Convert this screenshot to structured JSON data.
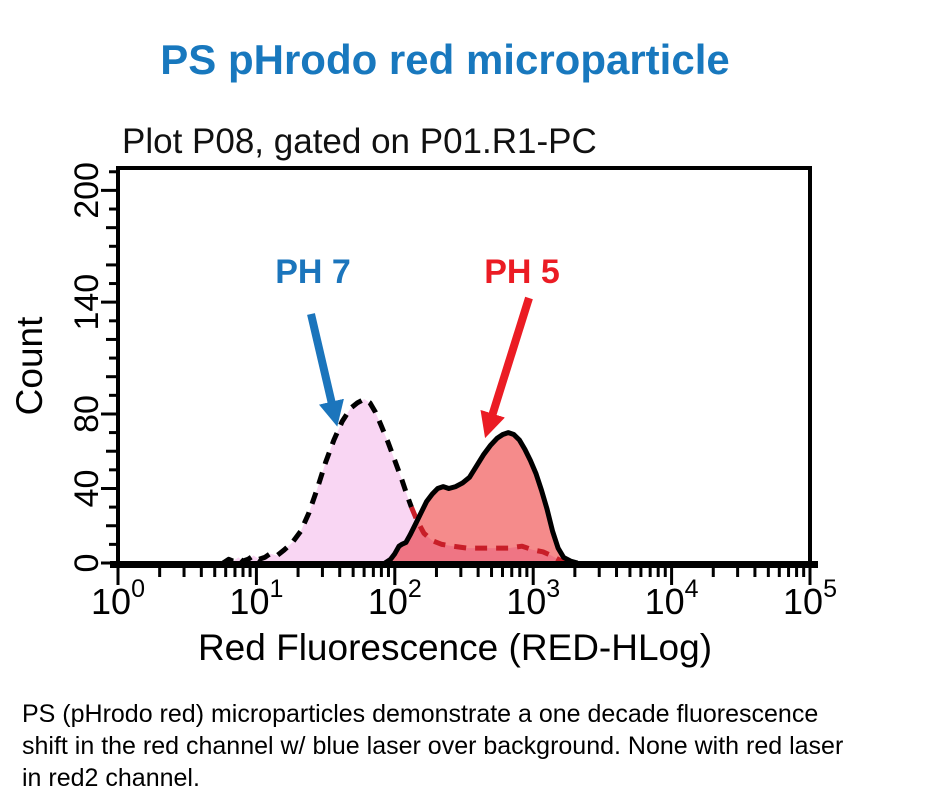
{
  "title": {
    "text": "PS pHrodo red microparticle",
    "color": "#1878BE"
  },
  "plot": {
    "title": "Plot P08, gated on P01.R1-PC",
    "x_axis_label": "Red Fluorescence (RED-HLog)",
    "y_axis_label": "Count"
  },
  "annotations": {
    "ph7": {
      "label": "PH 7",
      "color": "#1B75BC"
    },
    "ph5": {
      "label": "PH 5",
      "color": "#EB1C24"
    }
  },
  "caption": {
    "lines": [
      "PS (pHrodo red) microparticles demonstrate a one decade fluorescence",
      "shift in the red channel w/ blue laser over background. None with red laser",
      "in red2 channel."
    ]
  },
  "chart_data": {
    "type": "area",
    "subtype": "flow-cytometry-histogram-overlay",
    "title": "Plot P08, gated on P01.R1-PC",
    "xlabel": "Red Fluorescence (RED-HLog)",
    "ylabel": "Count",
    "x_scale": "log10",
    "x_range": [
      1,
      100000
    ],
    "x_ticks": [
      {
        "base": "10",
        "exp": "0"
      },
      {
        "base": "10",
        "exp": "1"
      },
      {
        "base": "10",
        "exp": "2"
      },
      {
        "base": "10",
        "exp": "3"
      },
      {
        "base": "10",
        "exp": "4"
      },
      {
        "base": "10",
        "exp": "5"
      }
    ],
    "y_ticks": [
      0,
      40,
      80,
      140,
      200
    ],
    "y_minor_step": 10,
    "y_max": 212,
    "grid": false,
    "legend": "annotated-arrows",
    "series": [
      {
        "name": "PH 7",
        "peak": {
          "x": 60,
          "count": 88
        },
        "stroke": "#000000",
        "stroke_style": "dashed",
        "tail_stroke": "#C81E28",
        "tail_start_index": 29,
        "fill": "#F9D6F3",
        "points_logx_count": [
          [
            0.76,
            0
          ],
          [
            0.8,
            2
          ],
          [
            0.83,
            1
          ],
          [
            0.87,
            3
          ],
          [
            0.9,
            1
          ],
          [
            0.94,
            2
          ],
          [
            0.98,
            4
          ],
          [
            1.02,
            2
          ],
          [
            1.06,
            3
          ],
          [
            1.1,
            5
          ],
          [
            1.15,
            4
          ],
          [
            1.2,
            7
          ],
          [
            1.26,
            11
          ],
          [
            1.32,
            17
          ],
          [
            1.38,
            27
          ],
          [
            1.44,
            40
          ],
          [
            1.5,
            54
          ],
          [
            1.56,
            66
          ],
          [
            1.62,
            76
          ],
          [
            1.68,
            83
          ],
          [
            1.73,
            86
          ],
          [
            1.78,
            88
          ],
          [
            1.82,
            86
          ],
          [
            1.86,
            81
          ],
          [
            1.9,
            74
          ],
          [
            1.95,
            65
          ],
          [
            2.0,
            55
          ],
          [
            2.05,
            45
          ],
          [
            2.09,
            36
          ],
          [
            2.12,
            30
          ],
          [
            2.16,
            23
          ],
          [
            2.21,
            16
          ],
          [
            2.27,
            12
          ],
          [
            2.34,
            10
          ],
          [
            2.42,
            9
          ],
          [
            2.52,
            8
          ],
          [
            2.62,
            8
          ],
          [
            2.72,
            8
          ],
          [
            2.82,
            8
          ],
          [
            2.92,
            9
          ],
          [
            3.0,
            7
          ],
          [
            3.07,
            6
          ],
          [
            3.13,
            4
          ],
          [
            3.18,
            2
          ],
          [
            3.23,
            0
          ]
        ]
      },
      {
        "name": "PH 5",
        "peak": {
          "x": 660,
          "count": 70
        },
        "stroke": "#000000",
        "stroke_style": "solid",
        "fill": "#F58B8B",
        "blend": "multiply",
        "points_logx_count": [
          [
            1.93,
            0
          ],
          [
            1.97,
            2
          ],
          [
            2.0,
            5
          ],
          [
            2.03,
            9
          ],
          [
            2.05,
            10
          ],
          [
            2.08,
            11
          ],
          [
            2.11,
            15
          ],
          [
            2.15,
            21
          ],
          [
            2.19,
            27
          ],
          [
            2.23,
            33
          ],
          [
            2.27,
            37
          ],
          [
            2.31,
            40
          ],
          [
            2.35,
            41
          ],
          [
            2.39,
            40
          ],
          [
            2.44,
            41
          ],
          [
            2.49,
            43
          ],
          [
            2.54,
            46
          ],
          [
            2.59,
            52
          ],
          [
            2.64,
            58
          ],
          [
            2.69,
            63
          ],
          [
            2.74,
            67
          ],
          [
            2.78,
            69
          ],
          [
            2.82,
            70
          ],
          [
            2.86,
            69
          ],
          [
            2.9,
            66
          ],
          [
            2.94,
            61
          ],
          [
            2.98,
            55
          ],
          [
            3.02,
            48
          ],
          [
            3.06,
            39
          ],
          [
            3.1,
            29
          ],
          [
            3.14,
            17
          ],
          [
            3.18,
            8
          ],
          [
            3.22,
            3
          ],
          [
            3.27,
            1
          ],
          [
            3.32,
            0
          ]
        ]
      }
    ]
  }
}
